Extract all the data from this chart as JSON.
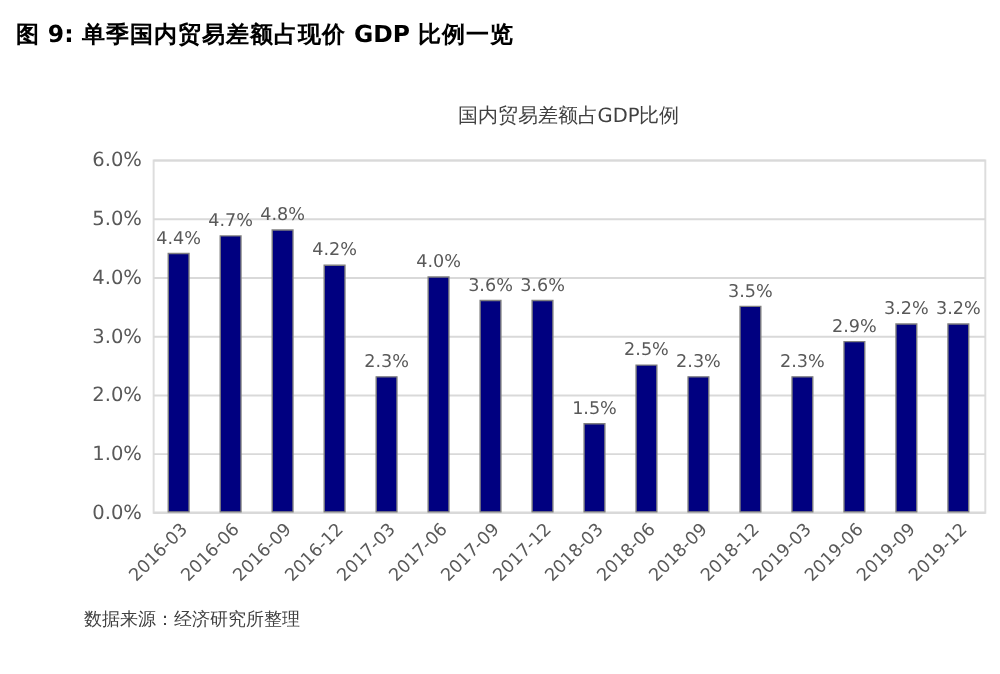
{
  "chart_data": {
    "type": "bar",
    "title": "图 9: 单季国内贸易差额占现价 GDP 比例一览",
    "subtitle": "国内贸易差额占GDP比例",
    "categories": [
      "2016-03",
      "2016-06",
      "2016-09",
      "2016-12",
      "2017-03",
      "2017-06",
      "2017-09",
      "2017-12",
      "2018-03",
      "2018-06",
      "2018-09",
      "2018-12",
      "2019-03",
      "2019-06",
      "2019-09",
      "2019-12"
    ],
    "values": [
      4.4,
      4.7,
      4.8,
      4.2,
      2.3,
      4.0,
      3.6,
      3.6,
      1.5,
      2.5,
      2.3,
      3.5,
      2.3,
      2.9,
      3.2,
      3.2
    ],
    "value_labels": [
      "4.4%",
      "4.7%",
      "4.8%",
      "4.2%",
      "2.3%",
      "4.0%",
      "3.6%",
      "3.6%",
      "1.5%",
      "2.5%",
      "2.3%",
      "3.5%",
      "2.3%",
      "2.9%",
      "3.2%",
      "3.2%"
    ],
    "color": "#000080",
    "ylim": [
      0,
      6
    ],
    "yticks": [
      {
        "value": 0,
        "label": "0.0%"
      },
      {
        "value": 1,
        "label": "1.0%"
      },
      {
        "value": 2,
        "label": "2.0%"
      },
      {
        "value": 3,
        "label": "3.0%"
      },
      {
        "value": 4,
        "label": "4.0%"
      },
      {
        "value": 5,
        "label": "5.0%"
      },
      {
        "value": 6,
        "label": "6.0%"
      }
    ],
    "grid": "y",
    "annotations": [
      "数据来源：经济研究所整理"
    ]
  }
}
